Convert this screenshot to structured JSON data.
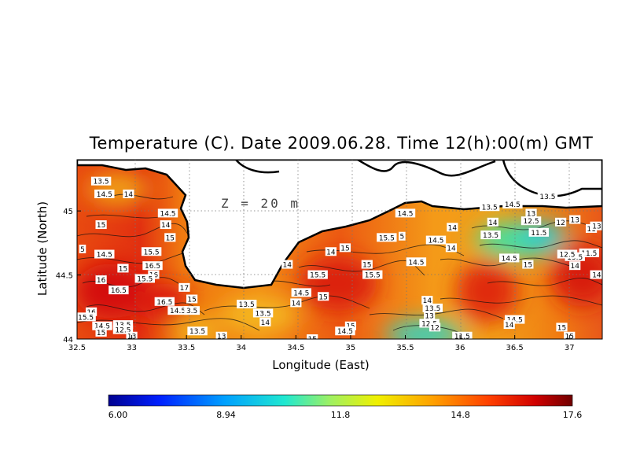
{
  "title": "Temperature (C). Date 2009.06.28. Time 12(h):00(m) GMT",
  "depth_label": "Z = 20 m",
  "axes": {
    "xlabel": "Longitude (East)",
    "ylabel": "Latitude (North)",
    "xlim": [
      32.5,
      37.3
    ],
    "ylim": [
      44.0,
      45.4
    ],
    "xticks": [
      "32.5",
      "33",
      "33.5",
      "34",
      "34.5",
      "35",
      "35.5",
      "36",
      "36.5",
      "37"
    ],
    "yticks": [
      "44",
      "44.5",
      "45"
    ]
  },
  "colorbar": {
    "min": 6.0,
    "max": 17.6,
    "labels": [
      "6.00",
      "8.94",
      "11.8",
      "14.8",
      "17.6"
    ],
    "colors": [
      "#000090",
      "#0020ff",
      "#00a0ff",
      "#20e8d0",
      "#a0f060",
      "#f0f000",
      "#ffa000",
      "#ff4000",
      "#d00000",
      "#700000"
    ]
  },
  "isotherm_labels": [
    {
      "t": "13.5",
      "lon": 32.72,
      "lat": 45.23
    },
    {
      "t": "14.5",
      "lon": 32.75,
      "lat": 45.13
    },
    {
      "t": "14",
      "lon": 32.97,
      "lat": 45.13
    },
    {
      "t": "14.5",
      "lon": 33.33,
      "lat": 44.98
    },
    {
      "t": "15",
      "lon": 32.72,
      "lat": 44.89
    },
    {
      "t": "14",
      "lon": 33.31,
      "lat": 44.89
    },
    {
      "t": "15",
      "lon": 33.35,
      "lat": 44.79
    },
    {
      "t": "5",
      "lon": 32.55,
      "lat": 44.7
    },
    {
      "t": "14.5",
      "lon": 32.75,
      "lat": 44.66
    },
    {
      "t": "15.5",
      "lon": 33.18,
      "lat": 44.68
    },
    {
      "t": "15",
      "lon": 32.92,
      "lat": 44.55
    },
    {
      "t": "16.5",
      "lon": 33.19,
      "lat": 44.57
    },
    {
      "t": "16",
      "lon": 33.2,
      "lat": 44.5
    },
    {
      "t": "15.5",
      "lon": 33.12,
      "lat": 44.47
    },
    {
      "t": "16",
      "lon": 32.72,
      "lat": 44.46
    },
    {
      "t": "16.5",
      "lon": 32.88,
      "lat": 44.38
    },
    {
      "t": "17",
      "lon": 33.48,
      "lat": 44.4
    },
    {
      "t": "15",
      "lon": 33.55,
      "lat": 44.31
    },
    {
      "t": "16.5",
      "lon": 33.3,
      "lat": 44.29
    },
    {
      "t": "14.5",
      "lon": 33.42,
      "lat": 44.22
    },
    {
      "t": "3.5",
      "lon": 33.55,
      "lat": 44.22
    },
    {
      "t": "16",
      "lon": 32.63,
      "lat": 44.21
    },
    {
      "t": "15.5",
      "lon": 32.58,
      "lat": 44.17
    },
    {
      "t": "14.5",
      "lon": 32.73,
      "lat": 44.1
    },
    {
      "t": "13.5",
      "lon": 32.92,
      "lat": 44.11
    },
    {
      "t": "12.5",
      "lon": 32.92,
      "lat": 44.07
    },
    {
      "t": "15",
      "lon": 32.72,
      "lat": 44.05
    },
    {
      "t": "13",
      "lon": 33.0,
      "lat": 44.02
    },
    {
      "t": "13.5",
      "lon": 33.6,
      "lat": 44.06
    },
    {
      "t": "13",
      "lon": 33.82,
      "lat": 44.02
    },
    {
      "t": "13.5",
      "lon": 34.05,
      "lat": 44.27
    },
    {
      "t": "13.5",
      "lon": 34.2,
      "lat": 44.2
    },
    {
      "t": "14",
      "lon": 34.22,
      "lat": 44.13
    },
    {
      "t": "14.5",
      "lon": 34.55,
      "lat": 44.36
    },
    {
      "t": "14",
      "lon": 34.5,
      "lat": 44.28
    },
    {
      "t": "15",
      "lon": 34.75,
      "lat": 44.33
    },
    {
      "t": "15.5",
      "lon": 34.7,
      "lat": 44.5
    },
    {
      "t": "14",
      "lon": 34.42,
      "lat": 44.58
    },
    {
      "t": "14",
      "lon": 34.82,
      "lat": 44.68
    },
    {
      "t": "15",
      "lon": 34.95,
      "lat": 44.71
    },
    {
      "t": "15",
      "lon": 35.15,
      "lat": 44.58
    },
    {
      "t": "15.5",
      "lon": 35.2,
      "lat": 44.5
    },
    {
      "t": "14.5",
      "lon": 35.6,
      "lat": 44.6
    },
    {
      "t": "15",
      "lon": 35.0,
      "lat": 44.1
    },
    {
      "t": "14.5",
      "lon": 34.95,
      "lat": 44.06
    },
    {
      "t": "15",
      "lon": 34.65,
      "lat": 44.0
    },
    {
      "t": "14.5",
      "lon": 35.5,
      "lat": 44.98
    },
    {
      "t": "15.5",
      "lon": 35.33,
      "lat": 44.79
    },
    {
      "t": "5",
      "lon": 35.47,
      "lat": 44.8
    },
    {
      "t": "14.5",
      "lon": 35.78,
      "lat": 44.77
    },
    {
      "t": "14",
      "lon": 35.93,
      "lat": 44.87
    },
    {
      "t": "14",
      "lon": 35.92,
      "lat": 44.71
    },
    {
      "t": "14",
      "lon": 36.3,
      "lat": 44.91
    },
    {
      "t": "13.5",
      "lon": 36.27,
      "lat": 45.03
    },
    {
      "t": "14.5",
      "lon": 36.48,
      "lat": 45.05
    },
    {
      "t": "13.5",
      "lon": 36.8,
      "lat": 45.11
    },
    {
      "t": "13",
      "lon": 36.65,
      "lat": 44.98
    },
    {
      "t": "12.5",
      "lon": 36.65,
      "lat": 44.92
    },
    {
      "t": "11.5",
      "lon": 36.72,
      "lat": 44.83
    },
    {
      "t": "12",
      "lon": 36.92,
      "lat": 44.91
    },
    {
      "t": "13",
      "lon": 37.05,
      "lat": 44.93
    },
    {
      "t": "13.5",
      "lon": 36.28,
      "lat": 44.81
    },
    {
      "t": "11",
      "lon": 37.2,
      "lat": 44.86
    },
    {
      "t": "13.5",
      "lon": 37.28,
      "lat": 44.88
    },
    {
      "t": "11.5",
      "lon": 37.18,
      "lat": 44.67
    },
    {
      "t": "13.5",
      "lon": 37.05,
      "lat": 44.64
    },
    {
      "t": "12.5",
      "lon": 36.98,
      "lat": 44.66
    },
    {
      "t": "14",
      "lon": 37.05,
      "lat": 44.57
    },
    {
      "t": "14.5",
      "lon": 36.45,
      "lat": 44.63
    },
    {
      "t": "15",
      "lon": 36.62,
      "lat": 44.58
    },
    {
      "t": "14.5",
      "lon": 37.28,
      "lat": 44.5
    },
    {
      "t": "15",
      "lon": 37.4,
      "lat": 44.5
    },
    {
      "t": "15",
      "lon": 37.78,
      "lat": 44.66
    },
    {
      "t": "14",
      "lon": 35.7,
      "lat": 44.3
    },
    {
      "t": "13.5",
      "lon": 35.75,
      "lat": 44.24
    },
    {
      "t": "13",
      "lon": 35.72,
      "lat": 44.18
    },
    {
      "t": "12.5",
      "lon": 35.72,
      "lat": 44.12
    },
    {
      "t": "12",
      "lon": 35.77,
      "lat": 44.09
    },
    {
      "t": "11.5",
      "lon": 36.02,
      "lat": 44.02
    },
    {
      "t": "14.5",
      "lon": 36.5,
      "lat": 44.15
    },
    {
      "t": "14",
      "lon": 36.45,
      "lat": 44.11
    },
    {
      "t": "15",
      "lon": 36.93,
      "lat": 44.09
    },
    {
      "t": "15",
      "lon": 37.0,
      "lat": 44.02
    }
  ]
}
